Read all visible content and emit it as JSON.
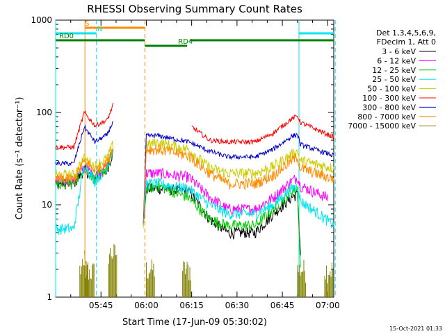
{
  "chart_data": {
    "type": "line",
    "title": "RHESSI Observing Summary Count Rates",
    "xlabel": "Start Time (17-Jun-09 05:30:02)",
    "ylabel": "Count Rate (s⁻¹ detector⁻¹)",
    "yscale": "log",
    "ylim": [
      1,
      1000
    ],
    "xlim_minutes": [
      0,
      92
    ],
    "y_ticks": [
      "1",
      "10",
      "100",
      "1000"
    ],
    "x_ticks": [
      {
        "label": "05:45",
        "t": 15
      },
      {
        "label": "06:00",
        "t": 30
      },
      {
        "label": "06:15",
        "t": 45
      },
      {
        "label": "06:30",
        "t": 60
      },
      {
        "label": "06:45",
        "t": 75
      },
      {
        "label": "07:00",
        "t": 90
      }
    ],
    "legend_header": [
      "Det 1,3,4,5,6,9,",
      "FDecim 1, Att 0"
    ],
    "legend_position": "right",
    "timestamp": "15-Oct-2021 01:33",
    "series": [
      {
        "name": "3 - 6 keV",
        "color": "#000000",
        "p1": [
          [
            0,
            17
          ],
          [
            6,
            17
          ],
          [
            9.5,
            24
          ],
          [
            13,
            19
          ],
          [
            17,
            24
          ],
          [
            19,
            38
          ]
        ],
        "p2": [
          [
            29,
            6
          ],
          [
            30,
            15
          ],
          [
            34,
            15
          ],
          [
            44,
            14
          ],
          [
            51,
            7
          ],
          [
            57,
            5
          ],
          [
            66,
            5
          ],
          [
            72,
            8
          ],
          [
            78,
            12
          ],
          [
            80,
            13
          ],
          [
            81,
            3
          ]
        ]
      },
      {
        "name": "6 - 12 keV",
        "color": "#ff00ff",
        "p1": [
          [
            0,
            18
          ],
          [
            6,
            18
          ],
          [
            9.5,
            26
          ],
          [
            13,
            21
          ],
          [
            17,
            26
          ],
          [
            19,
            40
          ]
        ],
        "p2": [
          [
            29,
            6
          ],
          [
            30,
            22
          ],
          [
            34,
            22
          ],
          [
            44,
            20
          ],
          [
            51,
            12
          ],
          [
            57,
            9
          ],
          [
            66,
            9
          ],
          [
            72,
            12
          ],
          [
            78,
            18
          ],
          [
            80,
            20
          ],
          [
            81,
            16
          ],
          [
            90,
            12
          ]
        ]
      },
      {
        "name": "12 - 25 keV",
        "color": "#00cc00",
        "p1": [
          [
            0,
            17
          ],
          [
            6,
            17
          ],
          [
            9.5,
            25
          ],
          [
            13,
            19
          ],
          [
            17,
            25
          ],
          [
            19,
            38
          ]
        ],
        "p2": [
          [
            29,
            6
          ],
          [
            30,
            15
          ],
          [
            34,
            16
          ],
          [
            44,
            12
          ],
          [
            51,
            7
          ],
          [
            57,
            6
          ],
          [
            66,
            6
          ],
          [
            72,
            9
          ],
          [
            78,
            14
          ],
          [
            80,
            15
          ],
          [
            81,
            2
          ]
        ]
      },
      {
        "name": "25 - 50 keV",
        "color": "#00e5ee",
        "p1": [
          [
            0,
            5.5
          ],
          [
            6,
            5.5
          ],
          [
            9.5,
            28
          ],
          [
            13,
            18
          ],
          [
            17,
            26
          ],
          [
            19,
            40
          ]
        ],
        "p2": [
          [
            29,
            6
          ],
          [
            30,
            17
          ],
          [
            34,
            17
          ],
          [
            44,
            15
          ],
          [
            51,
            10
          ],
          [
            57,
            8
          ],
          [
            66,
            8
          ],
          [
            72,
            10
          ],
          [
            78,
            15
          ],
          [
            80,
            16
          ],
          [
            81,
            11
          ],
          [
            87,
            8
          ],
          [
            92,
            6
          ]
        ]
      },
      {
        "name": "50 - 100 keV",
        "color": "#cccc00",
        "p1": [
          [
            0,
            21
          ],
          [
            6,
            21
          ],
          [
            9.5,
            32
          ],
          [
            13,
            26
          ],
          [
            17,
            32
          ],
          [
            19,
            45
          ]
        ],
        "p2": [
          [
            29,
            6
          ],
          [
            30,
            45
          ],
          [
            34,
            47
          ],
          [
            44,
            40
          ],
          [
            51,
            25
          ],
          [
            57,
            22
          ],
          [
            66,
            22
          ],
          [
            72,
            26
          ],
          [
            78,
            35
          ],
          [
            80,
            38
          ],
          [
            81,
            30
          ],
          [
            92,
            25
          ]
        ]
      },
      {
        "name": "100 - 300 keV",
        "color": "#ff0000",
        "p1": [
          [
            0,
            42
          ],
          [
            6,
            42
          ],
          [
            9.5,
            100
          ],
          [
            13,
            72
          ],
          [
            17,
            82
          ],
          [
            19,
            120
          ]
        ],
        "p2": [
          [
            45,
            70
          ],
          [
            51,
            50
          ],
          [
            57,
            48
          ],
          [
            66,
            48
          ],
          [
            72,
            60
          ],
          [
            78,
            85
          ],
          [
            80,
            92
          ],
          [
            81,
            78
          ],
          [
            92,
            54
          ]
        ]
      },
      {
        "name": "300 - 800 keV",
        "color": "#0000cc",
        "p1": [
          [
            0,
            28
          ],
          [
            6,
            28
          ],
          [
            9.5,
            70
          ],
          [
            13,
            48
          ],
          [
            17,
            57
          ],
          [
            19,
            80
          ]
        ],
        "p2": [
          [
            29,
            6
          ],
          [
            30,
            56
          ],
          [
            34,
            56
          ],
          [
            44,
            48
          ],
          [
            51,
            38
          ],
          [
            57,
            33
          ],
          [
            66,
            33
          ],
          [
            72,
            40
          ],
          [
            78,
            55
          ],
          [
            80,
            58
          ],
          [
            81,
            45
          ],
          [
            92,
            34
          ]
        ]
      },
      {
        "name": "800 - 7000 keV",
        "color": "#ff8c00",
        "p1": [
          [
            0,
            19
          ],
          [
            6,
            19
          ],
          [
            9.5,
            30
          ],
          [
            13,
            24
          ],
          [
            17,
            28
          ],
          [
            19,
            42
          ]
        ],
        "p2": [
          [
            29,
            6
          ],
          [
            30,
            40
          ],
          [
            34,
            40
          ],
          [
            44,
            34
          ],
          [
            51,
            22
          ],
          [
            57,
            17
          ],
          [
            66,
            17
          ],
          [
            72,
            21
          ],
          [
            78,
            30
          ],
          [
            80,
            33
          ],
          [
            81,
            25
          ],
          [
            92,
            19
          ]
        ]
      },
      {
        "name": "7000 - 15000 keV",
        "color": "#808000"
      }
    ],
    "orange_noise": [
      [
        9.5,
        3.2
      ],
      [
        9.8,
        2.3
      ]
    ],
    "olive_bursts": [
      [
        8,
        2
      ],
      [
        10,
        1.9
      ],
      [
        17.5,
        3
      ],
      [
        30,
        2
      ],
      [
        42,
        2
      ],
      [
        80,
        2
      ],
      [
        89,
        2
      ]
    ],
    "vertical_lines": [
      {
        "t": 0,
        "color": "#00e5ee",
        "style": "solid"
      },
      {
        "t": 9.7,
        "color": "#ff8c00",
        "style": "solid"
      },
      {
        "t": 13.5,
        "color": "#00e5ee",
        "style": "dashed"
      },
      {
        "t": 29.5,
        "color": "#ff8c00",
        "style": "dashed"
      },
      {
        "t": 80.5,
        "color": "#00e5ee",
        "style": "solid"
      },
      {
        "t": 92.5,
        "color": "#00e5ee",
        "style": "dashed"
      }
    ],
    "flag_bars": [
      {
        "label": "S",
        "color": "#ff8c00",
        "t0": 9.7,
        "t1": 29.5,
        "row": 0
      },
      {
        "label": "N",
        "color": "#00e5ee",
        "t0": 0,
        "t1": 13.5,
        "row": 1
      },
      {
        "label": "",
        "color": "#00e5ee",
        "t0": 80.5,
        "t1": 92,
        "row": 1
      },
      {
        "label": "RD0",
        "color": "#008000",
        "t0": 0,
        "t1": 29.5,
        "row": 2
      },
      {
        "label": "RD4",
        "color": "#008000",
        "t0": 29.5,
        "t1": 43.5,
        "row": 3
      },
      {
        "label": "",
        "color": "#008000",
        "t0": 44.5,
        "t1": 92,
        "row": 2
      }
    ]
  }
}
